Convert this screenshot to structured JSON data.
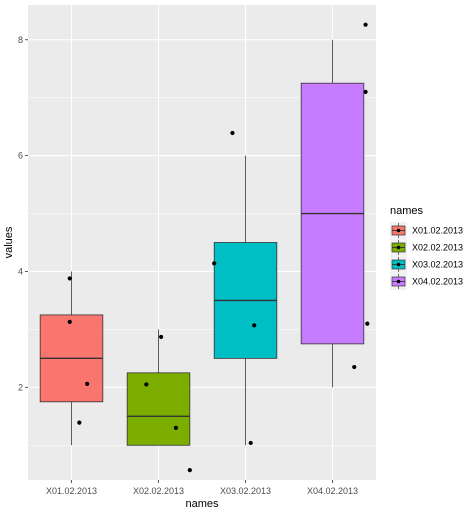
{
  "chart_data": {
    "type": "boxplot",
    "title": "",
    "xlabel": "names",
    "ylabel": "values",
    "ylim": [
      0.4,
      8.6
    ],
    "yticks": [
      2,
      4,
      6,
      8
    ],
    "grid": true,
    "legend_placement": "right",
    "legend_title": "names",
    "categories": [
      "X01.02.2013",
      "X02.02.2013",
      "X03.02.2013",
      "X04.02.2013"
    ],
    "colors": [
      "#F8766D",
      "#7CAE00",
      "#00BFC4",
      "#C77CFF"
    ],
    "boxes": [
      {
        "name": "X01.02.2013",
        "whisker_low": 1.0,
        "q1": 1.75,
        "median": 2.5,
        "q3": 3.25,
        "whisker_high": 4.0
      },
      {
        "name": "X02.02.2013",
        "whisker_low": 1.0,
        "q1": 1.0,
        "median": 1.5,
        "q3": 2.25,
        "whisker_high": 3.0
      },
      {
        "name": "X03.02.2013",
        "whisker_low": 1.0,
        "q1": 2.5,
        "median": 3.5,
        "q3": 4.5,
        "whisker_high": 6.0
      },
      {
        "name": "X04.02.2013",
        "whisker_low": 2.0,
        "q1": 2.75,
        "median": 5.0,
        "q3": 7.25,
        "whisker_high": 8.0
      }
    ],
    "points": [
      {
        "category": 0,
        "dx": -0.02,
        "y": 3.88
      },
      {
        "category": 0,
        "dx": -0.02,
        "y": 3.13
      },
      {
        "category": 0,
        "dx": 0.18,
        "y": 2.06
      },
      {
        "category": 0,
        "dx": 0.09,
        "y": 1.39
      },
      {
        "category": 1,
        "dx": -0.14,
        "y": 2.05
      },
      {
        "category": 1,
        "dx": 0.03,
        "y": 2.87
      },
      {
        "category": 1,
        "dx": 0.2,
        "y": 1.3
      },
      {
        "category": 1,
        "dx": 0.36,
        "y": 0.57
      },
      {
        "category": 2,
        "dx": -0.36,
        "y": 4.14
      },
      {
        "category": 2,
        "dx": -0.15,
        "y": 6.39
      },
      {
        "category": 2,
        "dx": 0.1,
        "y": 3.07
      },
      {
        "category": 2,
        "dx": 0.06,
        "y": 1.04
      },
      {
        "category": 3,
        "dx": 0.38,
        "y": 8.26
      },
      {
        "category": 3,
        "dx": 0.38,
        "y": 7.1
      },
      {
        "category": 3,
        "dx": 0.4,
        "y": 3.1
      },
      {
        "category": 3,
        "dx": 0.25,
        "y": 2.35
      }
    ]
  }
}
